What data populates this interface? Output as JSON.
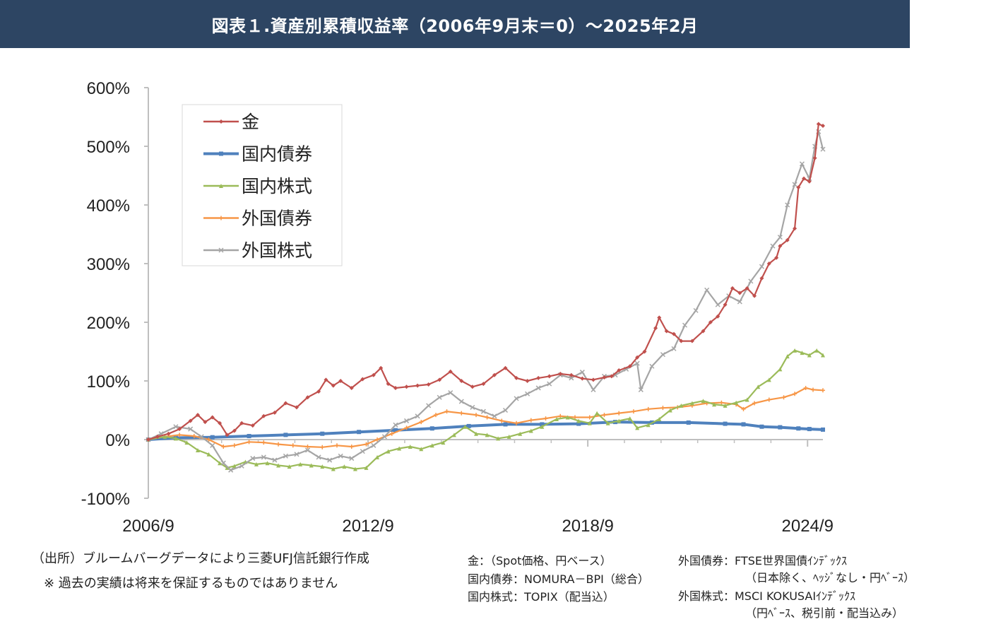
{
  "header": {
    "title": "図表１.資産別累積収益率（2006年9月末＝0）～2025年2月"
  },
  "chart_data": {
    "type": "line",
    "title": "",
    "xlabel": "",
    "ylabel": "",
    "ylim": [
      -100,
      600
    ],
    "xlim": [
      2006.75,
      2025.17
    ],
    "y_ticks": [
      600,
      500,
      400,
      300,
      200,
      100,
      0,
      -100
    ],
    "y_tick_labels": [
      "600%",
      "500%",
      "400%",
      "300%",
      "200%",
      "100%",
      "0%",
      "-100%"
    ],
    "x_ticks": [
      2006.75,
      2012.75,
      2018.75,
      2024.75
    ],
    "x_tick_labels": [
      "2006/9",
      "2012/9",
      "2018/9",
      "2024/9"
    ],
    "legend_position": "top-left",
    "grid": false,
    "series": [
      {
        "name": "金",
        "color": "#c0504d",
        "marker": "diamond",
        "points": [
          [
            2006.75,
            0
          ],
          [
            2007.0,
            5
          ],
          [
            2007.3,
            10
          ],
          [
            2007.6,
            18
          ],
          [
            2007.9,
            32
          ],
          [
            2008.1,
            42
          ],
          [
            2008.3,
            30
          ],
          [
            2008.5,
            38
          ],
          [
            2008.7,
            28
          ],
          [
            2008.9,
            8
          ],
          [
            2009.1,
            15
          ],
          [
            2009.3,
            28
          ],
          [
            2009.6,
            24
          ],
          [
            2009.9,
            40
          ],
          [
            2010.2,
            46
          ],
          [
            2010.5,
            62
          ],
          [
            2010.8,
            55
          ],
          [
            2011.1,
            72
          ],
          [
            2011.4,
            82
          ],
          [
            2011.6,
            102
          ],
          [
            2011.8,
            92
          ],
          [
            2012.0,
            100
          ],
          [
            2012.3,
            88
          ],
          [
            2012.6,
            103
          ],
          [
            2012.9,
            110
          ],
          [
            2013.1,
            122
          ],
          [
            2013.3,
            95
          ],
          [
            2013.5,
            88
          ],
          [
            2013.8,
            90
          ],
          [
            2014.1,
            92
          ],
          [
            2014.4,
            94
          ],
          [
            2014.7,
            102
          ],
          [
            2015.0,
            116
          ],
          [
            2015.3,
            100
          ],
          [
            2015.6,
            90
          ],
          [
            2015.9,
            95
          ],
          [
            2016.2,
            110
          ],
          [
            2016.5,
            122
          ],
          [
            2016.8,
            105
          ],
          [
            2017.1,
            100
          ],
          [
            2017.4,
            105
          ],
          [
            2017.7,
            108
          ],
          [
            2018.0,
            112
          ],
          [
            2018.3,
            110
          ],
          [
            2018.6,
            104
          ],
          [
            2018.9,
            102
          ],
          [
            2019.2,
            106
          ],
          [
            2019.4,
            108
          ],
          [
            2019.6,
            118
          ],
          [
            2019.9,
            125
          ],
          [
            2020.1,
            140
          ],
          [
            2020.3,
            150
          ],
          [
            2020.6,
            190
          ],
          [
            2020.7,
            208
          ],
          [
            2020.9,
            185
          ],
          [
            2021.1,
            180
          ],
          [
            2021.3,
            168
          ],
          [
            2021.6,
            168
          ],
          [
            2021.9,
            185
          ],
          [
            2022.1,
            200
          ],
          [
            2022.3,
            210
          ],
          [
            2022.5,
            230
          ],
          [
            2022.7,
            258
          ],
          [
            2022.9,
            250
          ],
          [
            2023.1,
            258
          ],
          [
            2023.3,
            245
          ],
          [
            2023.5,
            275
          ],
          [
            2023.7,
            300
          ],
          [
            2023.9,
            310
          ],
          [
            2024.0,
            330
          ],
          [
            2024.2,
            340
          ],
          [
            2024.4,
            360
          ],
          [
            2024.5,
            430
          ],
          [
            2024.65,
            445
          ],
          [
            2024.8,
            440
          ],
          [
            2024.95,
            480
          ],
          [
            2025.05,
            538
          ],
          [
            2025.17,
            535
          ]
        ]
      },
      {
        "name": "国内債券",
        "color": "#4f81bd",
        "marker": "square",
        "points": [
          [
            2006.75,
            0
          ],
          [
            2007.5,
            3
          ],
          [
            2008.5,
            4
          ],
          [
            2009.5,
            6
          ],
          [
            2010.5,
            8
          ],
          [
            2011.5,
            10
          ],
          [
            2012.5,
            13
          ],
          [
            2013.5,
            16
          ],
          [
            2014.5,
            19
          ],
          [
            2015.5,
            23
          ],
          [
            2016.5,
            26
          ],
          [
            2017.5,
            26
          ],
          [
            2018.5,
            27
          ],
          [
            2019.5,
            30
          ],
          [
            2020.5,
            29
          ],
          [
            2021.5,
            29
          ],
          [
            2022.5,
            27
          ],
          [
            2023.0,
            26
          ],
          [
            2023.5,
            22
          ],
          [
            2024.0,
            21
          ],
          [
            2024.5,
            19
          ],
          [
            2024.8,
            18
          ],
          [
            2025.17,
            17
          ]
        ]
      },
      {
        "name": "国内株式",
        "color": "#9bbb59",
        "marker": "triangle",
        "points": [
          [
            2006.75,
            0
          ],
          [
            2007.2,
            5
          ],
          [
            2007.5,
            2
          ],
          [
            2007.8,
            -5
          ],
          [
            2008.1,
            -18
          ],
          [
            2008.4,
            -25
          ],
          [
            2008.7,
            -40
          ],
          [
            2008.9,
            -48
          ],
          [
            2009.1,
            -45
          ],
          [
            2009.4,
            -38
          ],
          [
            2009.7,
            -42
          ],
          [
            2010.0,
            -40
          ],
          [
            2010.3,
            -44
          ],
          [
            2010.6,
            -46
          ],
          [
            2010.9,
            -42
          ],
          [
            2011.2,
            -44
          ],
          [
            2011.5,
            -46
          ],
          [
            2011.8,
            -50
          ],
          [
            2012.1,
            -46
          ],
          [
            2012.4,
            -50
          ],
          [
            2012.7,
            -48
          ],
          [
            2013.0,
            -30
          ],
          [
            2013.3,
            -20
          ],
          [
            2013.6,
            -15
          ],
          [
            2013.9,
            -12
          ],
          [
            2014.2,
            -16
          ],
          [
            2014.5,
            -10
          ],
          [
            2014.8,
            -5
          ],
          [
            2015.1,
            8
          ],
          [
            2015.4,
            22
          ],
          [
            2015.7,
            10
          ],
          [
            2016.0,
            8
          ],
          [
            2016.3,
            2
          ],
          [
            2016.6,
            5
          ],
          [
            2016.9,
            10
          ],
          [
            2017.2,
            15
          ],
          [
            2017.5,
            22
          ],
          [
            2017.9,
            35
          ],
          [
            2018.2,
            38
          ],
          [
            2018.5,
            32
          ],
          [
            2018.8,
            28
          ],
          [
            2019.0,
            45
          ],
          [
            2019.3,
            28
          ],
          [
            2019.6,
            32
          ],
          [
            2019.9,
            36
          ],
          [
            2020.1,
            20
          ],
          [
            2020.4,
            25
          ],
          [
            2020.7,
            35
          ],
          [
            2021.0,
            50
          ],
          [
            2021.3,
            58
          ],
          [
            2021.6,
            62
          ],
          [
            2021.9,
            66
          ],
          [
            2022.2,
            60
          ],
          [
            2022.5,
            58
          ],
          [
            2022.8,
            63
          ],
          [
            2023.1,
            68
          ],
          [
            2023.4,
            90
          ],
          [
            2023.7,
            102
          ],
          [
            2024.0,
            120
          ],
          [
            2024.2,
            142
          ],
          [
            2024.4,
            152
          ],
          [
            2024.6,
            148
          ],
          [
            2024.8,
            144
          ],
          [
            2025.0,
            152
          ],
          [
            2025.17,
            144
          ]
        ]
      },
      {
        "name": "外国債券",
        "color": "#f79646",
        "marker": "cross",
        "points": [
          [
            2006.75,
            0
          ],
          [
            2007.2,
            5
          ],
          [
            2007.6,
            8
          ],
          [
            2008.0,
            6
          ],
          [
            2008.4,
            0
          ],
          [
            2008.8,
            -12
          ],
          [
            2009.1,
            -10
          ],
          [
            2009.5,
            -4
          ],
          [
            2009.9,
            -5
          ],
          [
            2010.3,
            -8
          ],
          [
            2010.7,
            -10
          ],
          [
            2011.1,
            -12
          ],
          [
            2011.5,
            -13
          ],
          [
            2011.9,
            -10
          ],
          [
            2012.3,
            -12
          ],
          [
            2012.7,
            -8
          ],
          [
            2013.0,
            0
          ],
          [
            2013.4,
            10
          ],
          [
            2013.8,
            20
          ],
          [
            2014.2,
            30
          ],
          [
            2014.6,
            42
          ],
          [
            2014.9,
            48
          ],
          [
            2015.3,
            45
          ],
          [
            2015.7,
            42
          ],
          [
            2016.0,
            38
          ],
          [
            2016.4,
            32
          ],
          [
            2016.8,
            28
          ],
          [
            2017.2,
            33
          ],
          [
            2017.6,
            36
          ],
          [
            2018.0,
            40
          ],
          [
            2018.4,
            38
          ],
          [
            2018.8,
            38
          ],
          [
            2019.2,
            42
          ],
          [
            2019.6,
            45
          ],
          [
            2020.0,
            48
          ],
          [
            2020.4,
            52
          ],
          [
            2020.8,
            54
          ],
          [
            2021.2,
            55
          ],
          [
            2021.6,
            58
          ],
          [
            2022.0,
            62
          ],
          [
            2022.4,
            63
          ],
          [
            2022.8,
            60
          ],
          [
            2023.0,
            52
          ],
          [
            2023.3,
            62
          ],
          [
            2023.7,
            68
          ],
          [
            2024.1,
            72
          ],
          [
            2024.4,
            78
          ],
          [
            2024.7,
            88
          ],
          [
            2024.9,
            85
          ],
          [
            2025.17,
            84
          ]
        ]
      },
      {
        "name": "外国株式",
        "color": "#a5a5a5",
        "marker": "x",
        "points": [
          [
            2006.75,
            0
          ],
          [
            2007.1,
            10
          ],
          [
            2007.5,
            22
          ],
          [
            2007.9,
            18
          ],
          [
            2008.2,
            5
          ],
          [
            2008.5,
            -10
          ],
          [
            2008.8,
            -40
          ],
          [
            2009.0,
            -52
          ],
          [
            2009.3,
            -45
          ],
          [
            2009.6,
            -32
          ],
          [
            2009.9,
            -30
          ],
          [
            2010.2,
            -35
          ],
          [
            2010.5,
            -28
          ],
          [
            2010.8,
            -25
          ],
          [
            2011.1,
            -18
          ],
          [
            2011.4,
            -30
          ],
          [
            2011.7,
            -35
          ],
          [
            2012.0,
            -28
          ],
          [
            2012.3,
            -32
          ],
          [
            2012.6,
            -20
          ],
          [
            2012.9,
            -10
          ],
          [
            2013.2,
            5
          ],
          [
            2013.5,
            25
          ],
          [
            2013.8,
            32
          ],
          [
            2014.1,
            40
          ],
          [
            2014.4,
            58
          ],
          [
            2014.7,
            72
          ],
          [
            2015.0,
            80
          ],
          [
            2015.3,
            65
          ],
          [
            2015.6,
            55
          ],
          [
            2015.9,
            48
          ],
          [
            2016.2,
            40
          ],
          [
            2016.5,
            50
          ],
          [
            2016.8,
            70
          ],
          [
            2017.1,
            78
          ],
          [
            2017.4,
            88
          ],
          [
            2017.7,
            95
          ],
          [
            2018.0,
            110
          ],
          [
            2018.3,
            105
          ],
          [
            2018.6,
            115
          ],
          [
            2018.9,
            85
          ],
          [
            2019.2,
            108
          ],
          [
            2019.5,
            110
          ],
          [
            2019.8,
            120
          ],
          [
            2020.1,
            130
          ],
          [
            2020.2,
            85
          ],
          [
            2020.5,
            125
          ],
          [
            2020.8,
            145
          ],
          [
            2021.1,
            155
          ],
          [
            2021.4,
            195
          ],
          [
            2021.7,
            220
          ],
          [
            2022.0,
            255
          ],
          [
            2022.3,
            230
          ],
          [
            2022.6,
            245
          ],
          [
            2022.9,
            235
          ],
          [
            2023.2,
            270
          ],
          [
            2023.5,
            295
          ],
          [
            2023.8,
            330
          ],
          [
            2024.0,
            345
          ],
          [
            2024.2,
            400
          ],
          [
            2024.4,
            435
          ],
          [
            2024.6,
            470
          ],
          [
            2024.8,
            445
          ],
          [
            2024.95,
            500
          ],
          [
            2025.05,
            525
          ],
          [
            2025.17,
            495
          ]
        ]
      }
    ]
  },
  "notes": {
    "source": "（出所）ブルームバーグデータにより三菱UFJ信託銀行作成",
    "disclaimer": "※ 過去の実績は将来を保証するものではありません"
  },
  "definitions": {
    "gold": "金：（Spot価格、円ベース）",
    "domestic_bond": "国内債券：NOMURA－BPI（総合）",
    "domestic_stock": "国内株式：TOPIX（配当込）",
    "foreign_bond_line1": "外国債券：FTSE世界国債ｲﾝﾃﾞｯｸｽ",
    "foreign_bond_line2": "（日本除く、ﾍｯｼﾞなし・円ﾍﾞｰｽ）",
    "foreign_stock_line1": "外国株式：MSCI KOKUSAIｲﾝﾃﾞｯｸｽ",
    "foreign_stock_line2": "（円ﾍﾞｰｽ、税引前・配当込み）"
  }
}
